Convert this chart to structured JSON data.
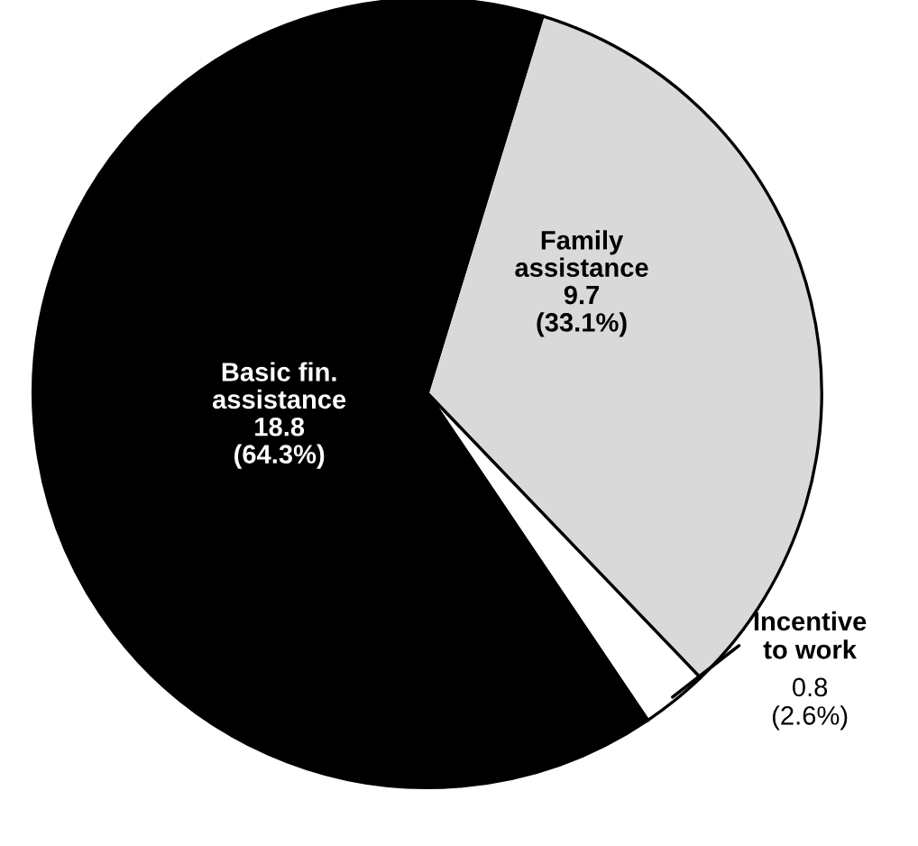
{
  "chart_data": {
    "type": "pie",
    "categories": [
      "Family\nassistance",
      "Incentive\nto work",
      "Basic fin.\nassistance"
    ],
    "values": [
      9.7,
      0.8,
      18.8
    ],
    "value_labels": [
      "9.7\n(33.1%)",
      "0.8\n(2.6%)",
      "18.8\n(64.3%)"
    ],
    "colors": [
      "#d9d9d9",
      "#ffffff",
      "#000000"
    ]
  }
}
